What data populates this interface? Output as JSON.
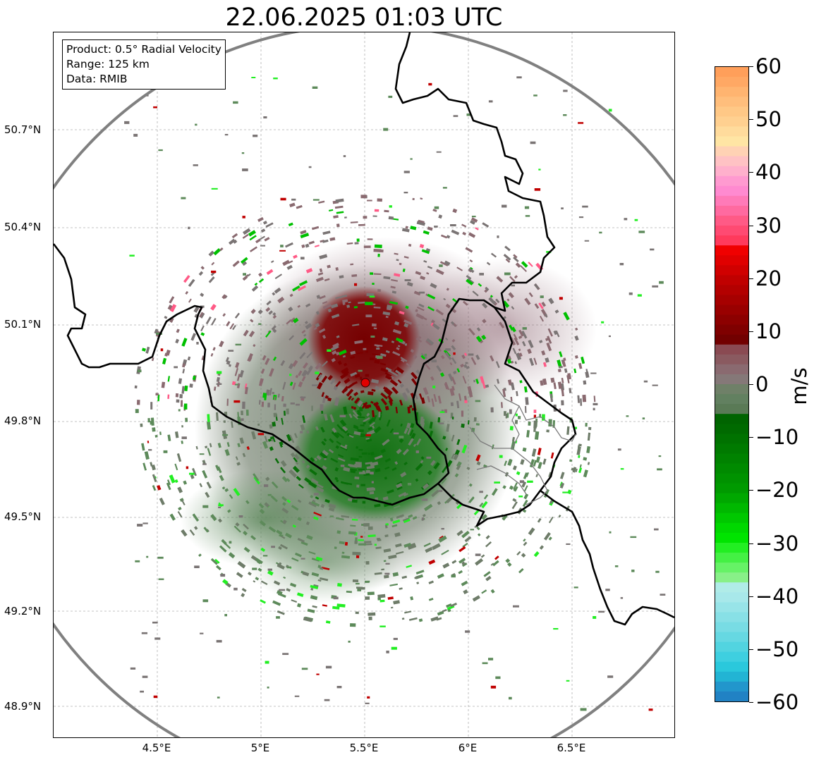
{
  "title": "22.06.2025 01:03 UTC",
  "info": {
    "product": "Product: 0.5° Radial Velocity",
    "range": "Range: 125 km",
    "source": "Data: RMIB"
  },
  "axes": {
    "lat_ticks": [
      "50.7°N",
      "50.4°N",
      "50.1°N",
      "49.8°N",
      "49.5°N",
      "49.2°N",
      "48.9°N"
    ],
    "lon_ticks": [
      "4.5°E",
      "5°E",
      "5.5°E",
      "6°E",
      "6.5°E"
    ]
  },
  "colorbar": {
    "unit": "m/s",
    "min": -60,
    "max": 60,
    "ticks": [
      "60",
      "50",
      "40",
      "30",
      "20",
      "10",
      "0",
      "−10",
      "−20",
      "−30",
      "−40",
      "−50",
      "−60"
    ],
    "tick_values": [
      60,
      50,
      40,
      30,
      20,
      10,
      0,
      -10,
      -20,
      -30,
      -40,
      -50,
      -60
    ]
  },
  "radar_site": {
    "lon": 5.505,
    "lat": 49.914
  },
  "colors": {
    "strong_away": "#7a0000",
    "weak_away": "#8a6e74",
    "zero": "#6b7f68",
    "weak_toward": "#5d8a5a",
    "strong_toward": "#0a7a0a",
    "range_ring": "#808080",
    "site_marker": "#e00000"
  }
}
